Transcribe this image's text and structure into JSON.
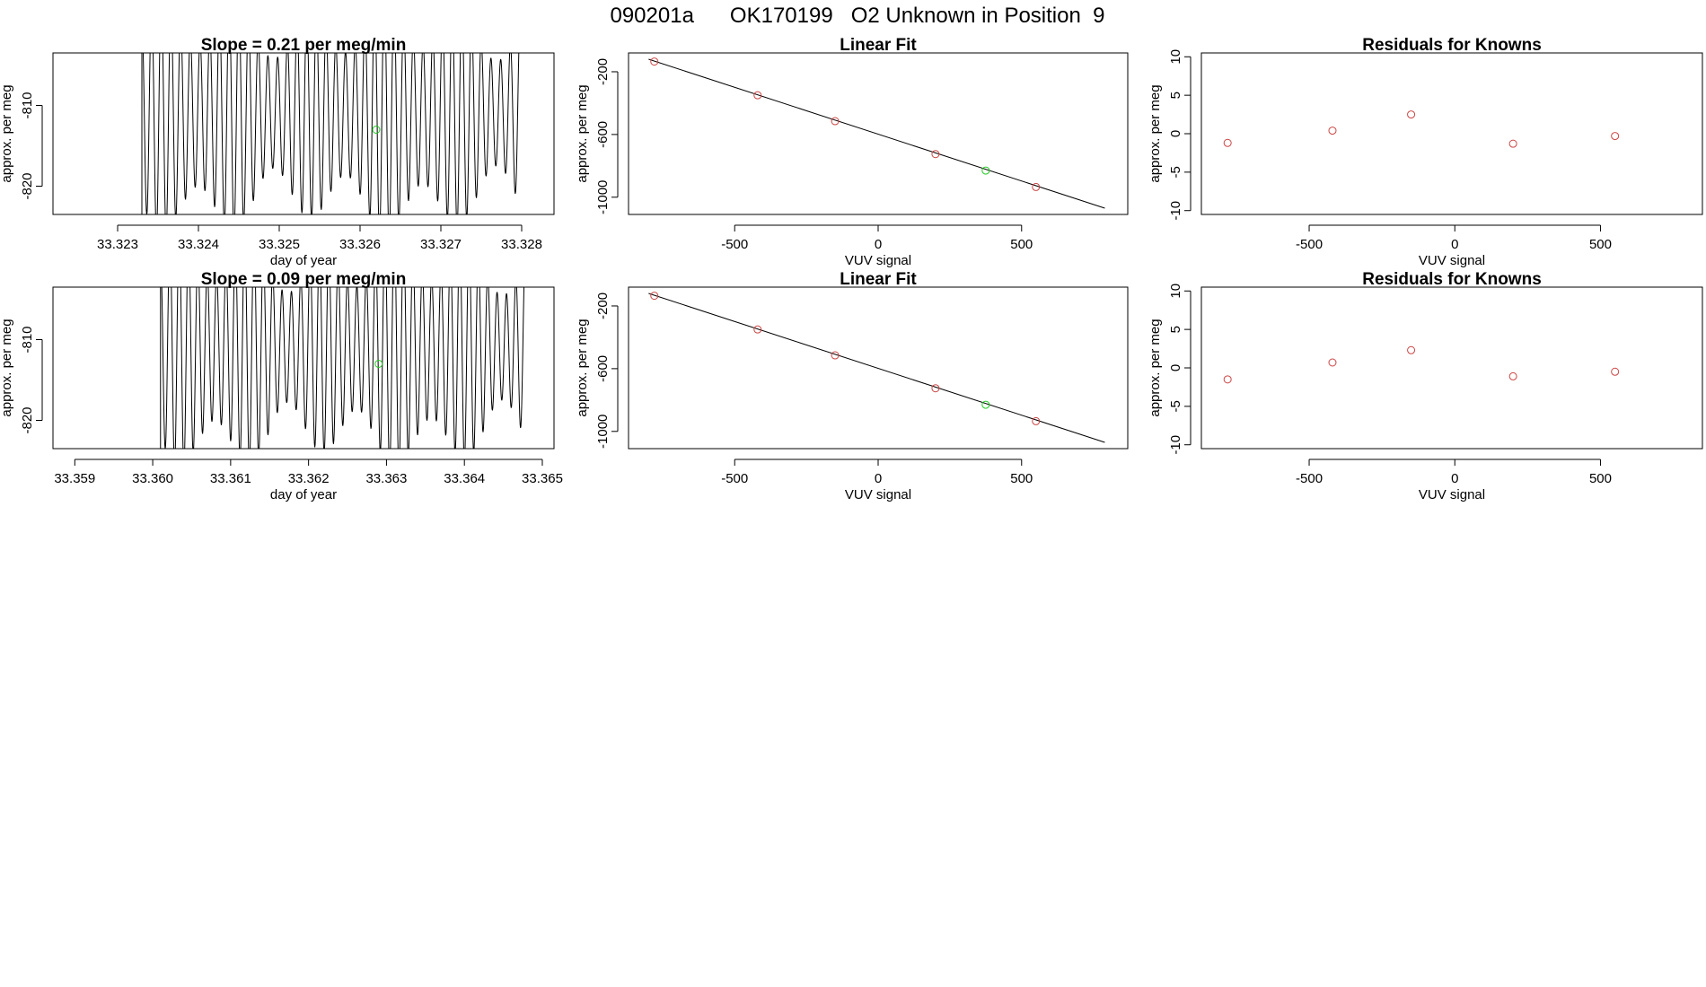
{
  "figure_title": "090201a      OK170199   O2 Unknown in Position  9",
  "colors": {
    "known": "#cc4444",
    "unknown": "#22cc22",
    "line": "#000000"
  },
  "chart_data": [
    {
      "id": "trace-row1",
      "type": "line",
      "title": "Slope =  0.21  per meg/min",
      "xlabel": "day of year",
      "ylabel": "approx. per meg",
      "xlim": [
        33.3222,
        33.3284
      ],
      "ylim": [
        -823.5,
        -803.5
      ],
      "xticks": [
        33.323,
        33.324,
        33.325,
        33.326,
        33.327,
        33.328
      ],
      "xtick_labels": [
        "33.323",
        "33.324",
        "33.325",
        "33.326",
        "33.327",
        "33.328"
      ],
      "yticks": [
        -810,
        -820
      ],
      "ytick_labels": [
        "-810",
        "-820"
      ],
      "trace_start": 33.3233,
      "trace_end": 33.328,
      "oscillation_period": 0.00012,
      "center": -811,
      "amplitude": 13,
      "marker": {
        "x": 33.3262,
        "y": -813
      }
    },
    {
      "id": "fit-row1",
      "type": "scatter",
      "title": "Linear Fit",
      "xlabel": "VUV signal",
      "ylabel": "approx. per meg",
      "xlim": [
        -870,
        870
      ],
      "ylim": [
        -1110,
        -80
      ],
      "xticks": [
        -500,
        0,
        500
      ],
      "xtick_labels": [
        "-500",
        "0",
        "500"
      ],
      "yticks": [
        -200,
        -600,
        -1000
      ],
      "ytick_labels": [
        "-200",
        "-600",
        "-1000"
      ],
      "points": [
        {
          "x": -780,
          "y": -135
        },
        {
          "x": -420,
          "y": -350
        },
        {
          "x": -150,
          "y": -515
        },
        {
          "x": 200,
          "y": -725
        },
        {
          "x": 550,
          "y": -935
        }
      ],
      "unknown": {
        "x": 375,
        "y": -830
      },
      "fit_line": {
        "x": [
          -800,
          790
        ],
        "y": [
          -120,
          -1070
        ]
      }
    },
    {
      "id": "residuals-row1",
      "type": "scatter",
      "title": "Residuals for Knowns",
      "xlabel": "VUV signal",
      "ylabel": "approx. per meg",
      "xlim": [
        -870,
        850
      ],
      "ylim": [
        -10.5,
        10.5
      ],
      "xticks": [
        -500,
        0,
        500
      ],
      "xtick_labels": [
        "-500",
        "0",
        "500"
      ],
      "yticks": [
        10,
        5,
        0,
        -5,
        -10
      ],
      "ytick_labels": [
        "10",
        "5",
        "0",
        "-5",
        "-10"
      ],
      "points": [
        {
          "x": -780,
          "y": -1.2
        },
        {
          "x": -420,
          "y": 0.4
        },
        {
          "x": -150,
          "y": 2.5
        },
        {
          "x": 200,
          "y": -1.3
        },
        {
          "x": 550,
          "y": -0.3
        }
      ]
    },
    {
      "id": "trace-row2",
      "type": "line",
      "title": "Slope =  0.09  per meg/min",
      "xlabel": "day of year",
      "ylabel": "approx. per meg",
      "xlim": [
        33.35872,
        33.36515
      ],
      "ylim": [
        -823.5,
        -803.5
      ],
      "xticks": [
        33.359,
        33.36,
        33.361,
        33.362,
        33.363,
        33.364,
        33.365
      ],
      "xtick_labels": [
        "33.359",
        "33.360",
        "33.361",
        "33.362",
        "33.363",
        "33.364",
        "33.365"
      ],
      "yticks": [
        -810,
        -820
      ],
      "ytick_labels": [
        "-810",
        "-820"
      ],
      "trace_start": 33.3601,
      "trace_end": 33.3648,
      "oscillation_period": 0.00012,
      "center": -811,
      "amplitude": 13,
      "marker": {
        "x": 33.3629,
        "y": -813
      }
    },
    {
      "id": "fit-row2",
      "type": "scatter",
      "title": "Linear Fit",
      "xlabel": "VUV signal",
      "ylabel": "approx. per meg",
      "xlim": [
        -870,
        870
      ],
      "ylim": [
        -1110,
        -80
      ],
      "xticks": [
        -500,
        0,
        500
      ],
      "xtick_labels": [
        "-500",
        "0",
        "500"
      ],
      "yticks": [
        -200,
        -600,
        -1000
      ],
      "ytick_labels": [
        "-200",
        "-600",
        "-1000"
      ],
      "points": [
        {
          "x": -780,
          "y": -135
        },
        {
          "x": -420,
          "y": -350
        },
        {
          "x": -150,
          "y": -515
        },
        {
          "x": 200,
          "y": -725
        },
        {
          "x": 550,
          "y": -935
        }
      ],
      "unknown": {
        "x": 375,
        "y": -830
      },
      "fit_line": {
        "x": [
          -800,
          790
        ],
        "y": [
          -120,
          -1070
        ]
      }
    },
    {
      "id": "residuals-row2",
      "type": "scatter",
      "title": "Residuals for Knowns",
      "xlabel": "VUV signal",
      "ylabel": "approx. per meg",
      "xlim": [
        -870,
        850
      ],
      "ylim": [
        -10.5,
        10.5
      ],
      "xticks": [
        -500,
        0,
        500
      ],
      "xtick_labels": [
        "-500",
        "0",
        "500"
      ],
      "yticks": [
        10,
        5,
        0,
        -5,
        -10
      ],
      "ytick_labels": [
        "10",
        "5",
        "0",
        "-5",
        "-10"
      ],
      "points": [
        {
          "x": -780,
          "y": -1.5
        },
        {
          "x": -420,
          "y": 0.7
        },
        {
          "x": -150,
          "y": 2.3
        },
        {
          "x": 200,
          "y": -1.1
        },
        {
          "x": 550,
          "y": -0.5
        }
      ]
    }
  ]
}
